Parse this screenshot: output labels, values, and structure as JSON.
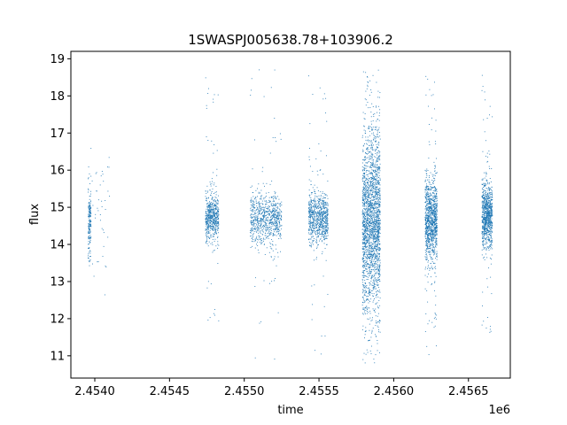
{
  "chart_data": {
    "type": "scatter",
    "title": "1SWASPJ005638.78+103906.2",
    "xlabel": "time",
    "ylabel": "flux",
    "offset_text": "1e6",
    "xlim": [
      2453840,
      2456780
    ],
    "ylim": [
      10.4,
      19.2
    ],
    "x_ticks": [
      2454000,
      2454500,
      2455000,
      2455500,
      2456000,
      2456500
    ],
    "x_tick_labels": [
      "2.4540",
      "2.4545",
      "2.4550",
      "2.4555",
      "2.4560",
      "2.4565"
    ],
    "y_ticks": [
      11,
      12,
      13,
      14,
      15,
      16,
      17,
      18,
      19
    ],
    "y_tick_labels": [
      "11",
      "12",
      "13",
      "14",
      "15",
      "16",
      "17",
      "18",
      "19"
    ],
    "grid": false,
    "legend": "none",
    "marker_color": "#1f77b4",
    "series": [
      {
        "clusters": [
          {
            "x_range": [
              2453955,
              2453975
            ],
            "y_center": 14.6,
            "y_spread": 0.5,
            "count": 180,
            "y_min": 13.0,
            "y_max": 17.6
          },
          {
            "x_range": [
              2453980,
              2454100
            ],
            "y_center": 14.8,
            "y_spread": 0.9,
            "count": 40,
            "y_min": 10.9,
            "y_max": 16.9
          },
          {
            "x_range": [
              2454740,
              2454830
            ],
            "y_center": 14.7,
            "y_spread": 0.3,
            "count": 600,
            "y_min": 11.5,
            "y_max": 18.7
          },
          {
            "x_range": [
              2455040,
              2455250
            ],
            "y_center": 14.7,
            "y_spread": 0.35,
            "count": 800,
            "y_min": 10.8,
            "y_max": 18.8
          },
          {
            "x_range": [
              2455430,
              2455560
            ],
            "y_center": 14.7,
            "y_spread": 0.35,
            "count": 800,
            "y_min": 10.9,
            "y_max": 18.8
          },
          {
            "x_range": [
              2455790,
              2455910
            ],
            "y_center": 14.6,
            "y_spread": 1.2,
            "count": 2200,
            "y_min": 10.8,
            "y_max": 18.8
          },
          {
            "x_range": [
              2456210,
              2456290
            ],
            "y_center": 14.7,
            "y_spread": 0.55,
            "count": 1100,
            "y_min": 11.0,
            "y_max": 18.6
          },
          {
            "x_range": [
              2456590,
              2456660
            ],
            "y_center": 14.8,
            "y_spread": 0.45,
            "count": 900,
            "y_min": 11.6,
            "y_max": 18.8
          }
        ]
      }
    ]
  }
}
